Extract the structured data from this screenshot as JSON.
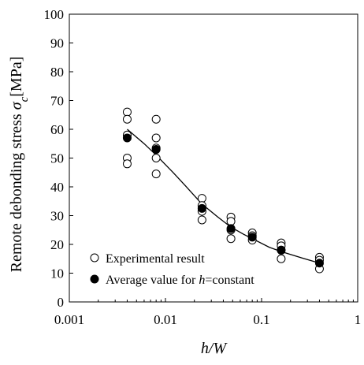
{
  "chart_data": {
    "type": "scatter",
    "xscale": "log",
    "xlim": [
      0.001,
      1
    ],
    "ylim": [
      0,
      100
    ],
    "xticks": [
      0.001,
      0.01,
      0.1,
      1
    ],
    "xtick_labels": [
      "0.001",
      "0.01",
      "0.1",
      "1"
    ],
    "yticks": [
      0,
      10,
      20,
      30,
      40,
      50,
      60,
      70,
      80,
      90,
      100
    ],
    "ytick_labels": [
      "0",
      "10",
      "20",
      "30",
      "40",
      "50",
      "60",
      "70",
      "80",
      "90",
      "100"
    ],
    "xlabel": {
      "parts": [
        {
          "text": "h/W",
          "italic": true
        }
      ]
    },
    "ylabel": {
      "parts": [
        {
          "text": "Remote debonding stress ",
          "italic": false
        },
        {
          "text": "σ",
          "italic": true
        },
        {
          "text": "c",
          "italic": true,
          "sub": true
        },
        {
          "text": "[MPa]",
          "italic": false
        }
      ]
    },
    "grid": false,
    "legend_position": "bottom-left",
    "series": [
      {
        "name": "Experimental result",
        "marker": "open-circle",
        "points": [
          [
            0.004,
            66.0
          ],
          [
            0.004,
            63.5
          ],
          [
            0.004,
            58.0
          ],
          [
            0.004,
            50.0
          ],
          [
            0.004,
            48.0
          ],
          [
            0.008,
            63.5
          ],
          [
            0.008,
            57.0
          ],
          [
            0.008,
            53.5
          ],
          [
            0.008,
            50.0
          ],
          [
            0.008,
            44.5
          ],
          [
            0.024,
            36.0
          ],
          [
            0.024,
            33.5
          ],
          [
            0.024,
            31.5
          ],
          [
            0.024,
            28.5
          ],
          [
            0.048,
            29.5
          ],
          [
            0.048,
            28.0
          ],
          [
            0.048,
            25.0
          ],
          [
            0.048,
            22.0
          ],
          [
            0.08,
            24.0
          ],
          [
            0.08,
            23.0
          ],
          [
            0.08,
            21.5
          ],
          [
            0.16,
            20.5
          ],
          [
            0.16,
            19.5
          ],
          [
            0.16,
            18.0
          ],
          [
            0.16,
            15.0
          ],
          [
            0.4,
            15.5
          ],
          [
            0.4,
            14.5
          ],
          [
            0.4,
            11.5
          ]
        ]
      },
      {
        "name": "Average value for h=constant",
        "name_parts": [
          {
            "text": "Average value for ",
            "italic": false
          },
          {
            "text": "h",
            "italic": true
          },
          {
            "text": "=constant",
            "italic": false
          }
        ],
        "marker": "filled-circle",
        "points": [
          [
            0.004,
            57.0
          ],
          [
            0.008,
            53.0
          ],
          [
            0.024,
            32.5
          ],
          [
            0.048,
            25.5
          ],
          [
            0.08,
            22.5
          ],
          [
            0.16,
            18.0
          ],
          [
            0.4,
            13.5
          ]
        ]
      },
      {
        "marker": "line",
        "points": [
          [
            0.004,
            60.0
          ],
          [
            0.006,
            55.0
          ],
          [
            0.008,
            51.0
          ],
          [
            0.012,
            45.0
          ],
          [
            0.016,
            40.5
          ],
          [
            0.024,
            34.0
          ],
          [
            0.035,
            29.5
          ],
          [
            0.048,
            26.0
          ],
          [
            0.065,
            23.5
          ],
          [
            0.08,
            22.0
          ],
          [
            0.12,
            19.0
          ],
          [
            0.16,
            17.5
          ],
          [
            0.25,
            15.5
          ],
          [
            0.4,
            13.5
          ]
        ]
      }
    ]
  }
}
